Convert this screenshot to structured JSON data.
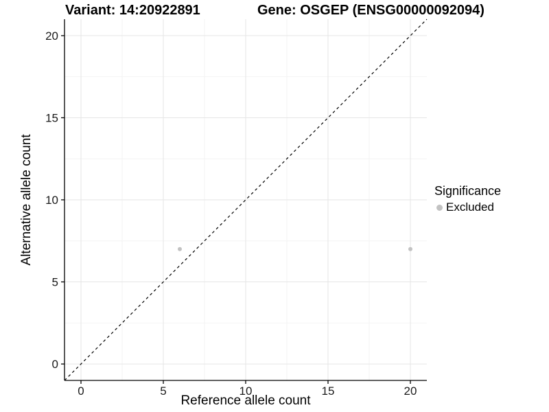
{
  "header": {
    "variant_title": "Variant: 14:20922891",
    "gene_title": "Gene: OSGEP (ENSG00000092094)"
  },
  "legend": {
    "title": "Significance",
    "items": [
      {
        "label": "Excluded",
        "color": "#c2c2c2"
      }
    ]
  },
  "chart_data": {
    "type": "scatter",
    "title": "Variant: 14:20922891 — Gene: OSGEP (ENSG00000092094)",
    "xlabel": "Reference allele count",
    "ylabel": "Alternative allele count",
    "xlim": [
      -1,
      21
    ],
    "ylim": [
      -1,
      21
    ],
    "x_ticks": [
      0,
      5,
      10,
      15,
      20
    ],
    "y_ticks": [
      0,
      5,
      10,
      15,
      20
    ],
    "x_minor_ticks": [
      2.5,
      7.5,
      12.5,
      17.5
    ],
    "y_minor_ticks": [
      2.5,
      7.5,
      12.5,
      17.5
    ],
    "grid": true,
    "legend_position": "right",
    "series": [
      {
        "name": "Excluded",
        "color": "#c2c2c2",
        "points": [
          {
            "x": 6,
            "y": 7
          },
          {
            "x": 20,
            "y": 7
          }
        ]
      }
    ],
    "reference_line": {
      "style": "dashed",
      "color": "#000000",
      "from": {
        "x": -1,
        "y": -1
      },
      "to": {
        "x": 21,
        "y": 21
      }
    }
  },
  "colors": {
    "background": "#ffffff",
    "axis": "#000000",
    "grid_major": "#e5e5e5",
    "grid_minor": "#f2f2f2",
    "text": "#1a1a1a",
    "excluded_point": "#c2c2c2"
  }
}
